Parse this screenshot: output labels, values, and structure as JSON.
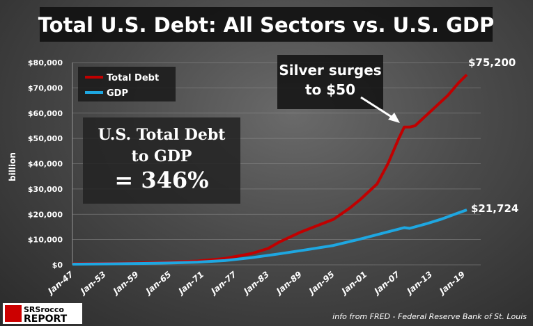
{
  "chart_data": {
    "type": "line",
    "title": "Total U.S. Debt: All Sectors vs. U.S. GDP",
    "ylabel": "billion",
    "ylim": [
      0,
      80000
    ],
    "yticks": [
      "$0",
      "$10,000",
      "$20,000",
      "$30,000",
      "$40,000",
      "$50,000",
      "$60,000",
      "$70,000",
      "$80,000"
    ],
    "xticks": [
      "Jan-47",
      "Jan-53",
      "Jan-59",
      "Jan-65",
      "Jan-71",
      "Jan-77",
      "Jan-83",
      "Jan-89",
      "Jan-95",
      "Jan-01",
      "Jan-07",
      "Jan-13",
      "Jan-19"
    ],
    "grid": true,
    "legend_placement": "top-left",
    "series": [
      {
        "name": "Total Debt",
        "color": "#c00000",
        "x": [
          1947,
          1955,
          1960,
          1965,
          1970,
          1975,
          1980,
          1983,
          1985,
          1989,
          1992,
          1995,
          1998,
          2000,
          2003,
          2005,
          2007,
          2008,
          2009,
          2010,
          2012,
          2014,
          2016,
          2018,
          2019.5
        ],
        "values": [
          400,
          600,
          800,
          1100,
          1500,
          2500,
          4500,
          6500,
          9000,
          13000,
          15500,
          18000,
          22500,
          26000,
          32000,
          40000,
          50000,
          54500,
          54500,
          55000,
          59000,
          63000,
          67000,
          72000,
          75200
        ]
      },
      {
        "name": "GDP",
        "color": "#1ea7e1",
        "x": [
          1947,
          1955,
          1960,
          1965,
          1970,
          1975,
          1980,
          1985,
          1990,
          1995,
          2000,
          2005,
          2008,
          2009,
          2012,
          2015,
          2018,
          2019.5
        ],
        "values": [
          250,
          420,
          540,
          740,
          1070,
          1680,
          2860,
          4340,
          5960,
          7660,
          10250,
          13040,
          14710,
          14420,
          16200,
          18200,
          20600,
          21724
        ]
      }
    ],
    "annotations": {
      "end_debt": "$75,200",
      "end_gdp": "$21,724",
      "silver": [
        "Silver surges",
        "to $50"
      ],
      "ratio": [
        "U.S. Total Debt",
        "to GDP",
        "= 346%"
      ]
    }
  },
  "footer": {
    "source": "info from FRED - Federal Reserve Bank of St. Louis",
    "logo": "SRSrocco REPORT"
  }
}
